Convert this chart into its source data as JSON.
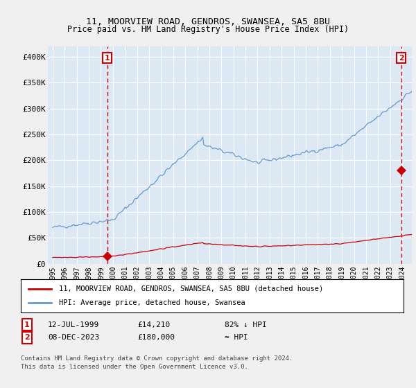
{
  "title": "11, MOORVIEW ROAD, GENDROS, SWANSEA, SA5 8BU",
  "subtitle": "Price paid vs. HM Land Registry's House Price Index (HPI)",
  "ylim": [
    0,
    420000
  ],
  "yticks": [
    0,
    50000,
    100000,
    150000,
    200000,
    250000,
    300000,
    350000,
    400000
  ],
  "ytick_labels": [
    "£0",
    "£50K",
    "£100K",
    "£150K",
    "£200K",
    "£250K",
    "£300K",
    "£350K",
    "£400K"
  ],
  "bg_color": "#dce9f5",
  "plot_bg_color": "#dce9f5",
  "outer_bg": "#f0f0f0",
  "grid_color": "#ffffff",
  "hpi_color": "#6699cc",
  "price_color": "#cc0000",
  "dashed_color": "#cc0000",
  "point1_year": 1999.53,
  "point1_price": 14210,
  "point2_year": 2023.92,
  "point2_price": 180000,
  "legend_label_price": "11, MOORVIEW ROAD, GENDROS, SWANSEA, SA5 8BU (detached house)",
  "legend_label_hpi": "HPI: Average price, detached house, Swansea",
  "footer1": "Contains HM Land Registry data © Crown copyright and database right 2024.",
  "footer2": "This data is licensed under the Open Government Licence v3.0.",
  "annotation1_date": "12-JUL-1999",
  "annotation1_price": "£14,210",
  "annotation1_hpi": "82% ↓ HPI",
  "annotation2_date": "08-DEC-2023",
  "annotation2_price": "£180,000",
  "annotation2_hpi": "≈ HPI",
  "xlim_left": 1994.6,
  "xlim_right": 2024.8
}
